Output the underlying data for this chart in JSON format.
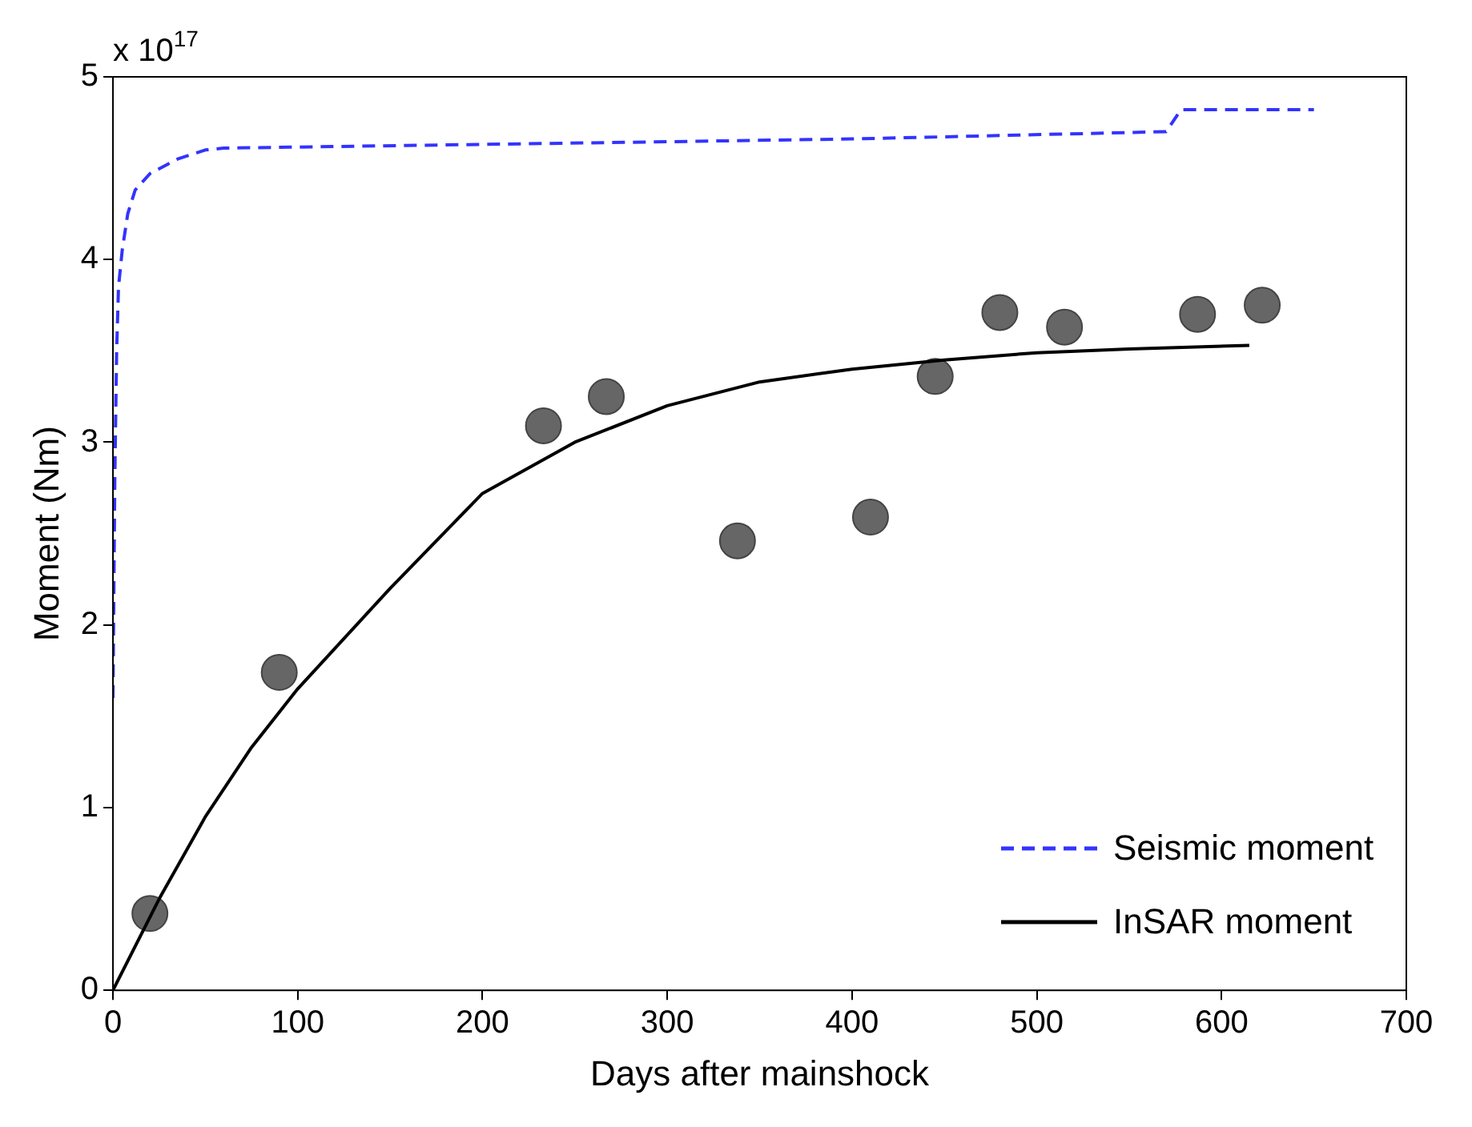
{
  "chart_data": {
    "type": "line",
    "xlabel": "Days after mainshock",
    "ylabel": "Moment (Nm)",
    "annotations": [
      "x 10$^{17}$"
    ],
    "xlim": [
      0,
      700
    ],
    "xticks": [
      0,
      100,
      200,
      300,
      400,
      500,
      600,
      700
    ],
    "ylim": [
      0,
      5
    ],
    "yticks": [
      0,
      1,
      2,
      3,
      4,
      5
    ],
    "grid": false,
    "legend": "bottom right",
    "series": [
      {
        "name": "Seismic moment",
        "color": "#3333ff",
        "line_style": "dashed",
        "marker": "none",
        "x": [
          0,
          1,
          2,
          3,
          5,
          8,
          12,
          20,
          35,
          50,
          60,
          200,
          400,
          570,
          574,
          578,
          650
        ],
        "values": [
          1.6,
          2.8,
          3.5,
          3.85,
          4.05,
          4.25,
          4.38,
          4.47,
          4.55,
          4.6,
          4.61,
          4.63,
          4.66,
          4.7,
          4.76,
          4.82,
          4.82
        ]
      },
      {
        "name": "InSAR moment",
        "color": "#000000",
        "line_style": "solid",
        "marker": "none",
        "x": [
          0,
          25,
          50,
          75,
          100,
          150,
          200,
          250,
          300,
          350,
          400,
          450,
          500,
          550,
          615
        ],
        "values": [
          0,
          0.5,
          0.95,
          1.33,
          1.65,
          2.2,
          2.72,
          3.0,
          3.2,
          3.33,
          3.4,
          3.45,
          3.49,
          3.51,
          3.53
        ]
      },
      {
        "type": "scatter",
        "color": "#666666",
        "marker": "circle",
        "x": [
          20,
          90,
          233,
          267,
          338,
          410,
          445,
          480,
          515,
          587,
          622
        ],
        "values": [
          0.42,
          1.74,
          3.09,
          3.25,
          2.46,
          2.59,
          3.36,
          3.71,
          3.63,
          3.7,
          3.75
        ]
      }
    ]
  }
}
